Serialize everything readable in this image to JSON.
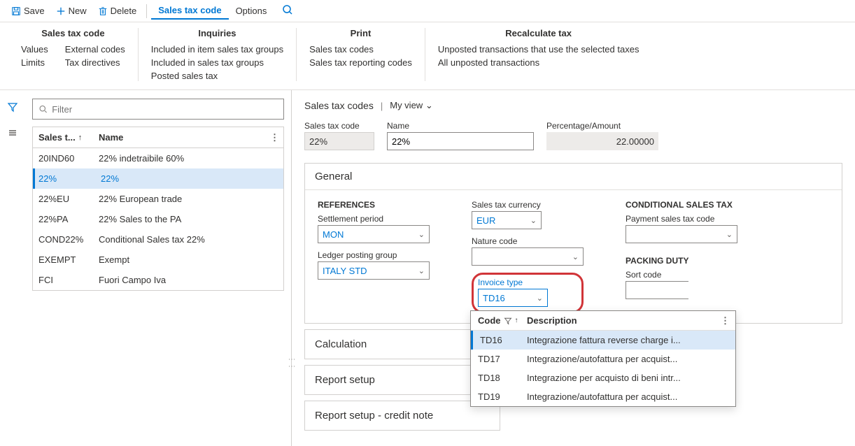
{
  "toolbar": {
    "save": "Save",
    "new": "New",
    "delete": "Delete",
    "tab_salestaxcode": "Sales tax code",
    "tab_options": "Options"
  },
  "ribbon": {
    "g1": {
      "title": "Sales tax code",
      "col1": [
        "Values",
        "Limits"
      ],
      "col2": [
        "External codes",
        "Tax directives"
      ]
    },
    "g2": {
      "title": "Inquiries",
      "col1": [
        "Included in item sales tax groups",
        "Included in sales tax groups",
        "Posted sales tax"
      ]
    },
    "g3": {
      "title": "Print",
      "col1": [
        "Sales tax codes",
        "Sales tax reporting codes"
      ]
    },
    "g4": {
      "title": "Recalculate tax",
      "col1": [
        "Unposted transactions that use the selected taxes",
        "All unposted transactions"
      ]
    }
  },
  "grid": {
    "filter_placeholder": "Filter",
    "col1": "Sales t...",
    "col2": "Name",
    "rows": [
      {
        "code": "20IND60",
        "name": "22% indetraibile 60%"
      },
      {
        "code": "22%",
        "name": "22%"
      },
      {
        "code": "22%EU",
        "name": "22% European trade"
      },
      {
        "code": "22%PA",
        "name": "22% Sales to the PA"
      },
      {
        "code": "COND22%",
        "name": "Conditional Sales tax 22%"
      },
      {
        "code": "EXEMPT",
        "name": "Exempt"
      },
      {
        "code": "FCI",
        "name": "Fuori Campo Iva"
      }
    ],
    "selected": 1
  },
  "detail": {
    "title": "Sales tax codes",
    "view": "My view",
    "code_label": "Sales tax code",
    "code_value": "22%",
    "name_label": "Name",
    "name_value": "22%",
    "pct_label": "Percentage/Amount",
    "pct_value": "22.00000"
  },
  "general": {
    "title": "General",
    "references": "REFERENCES",
    "settlement_label": "Settlement period",
    "settlement_value": "MON",
    "ledger_label": "Ledger posting group",
    "ledger_value": "ITALY STD",
    "currency_label": "Sales tax currency",
    "currency_value": "EUR",
    "nature_label": "Nature code",
    "nature_value": "",
    "invoice_label": "Invoice type",
    "invoice_value": "TD16",
    "conditional_title": "CONDITIONAL SALES TAX",
    "payment_label": "Payment sales tax code",
    "packing_title": "PACKING DUTY",
    "sort_label": "Sort code"
  },
  "dropdown": {
    "col1": "Code",
    "col2": "Description",
    "rows": [
      {
        "code": "TD16",
        "desc": "Integrazione fattura reverse charge i..."
      },
      {
        "code": "TD17",
        "desc": "Integrazione/autofattura per acquist..."
      },
      {
        "code": "TD18",
        "desc": "Integrazione per acquisto di beni intr..."
      },
      {
        "code": "TD19",
        "desc": "Integrazione/autofattura per acquist..."
      }
    ],
    "selected": 0
  },
  "tabs": {
    "calculation": "Calculation",
    "report_setup": "Report setup",
    "report_credit": "Report setup - credit note"
  }
}
